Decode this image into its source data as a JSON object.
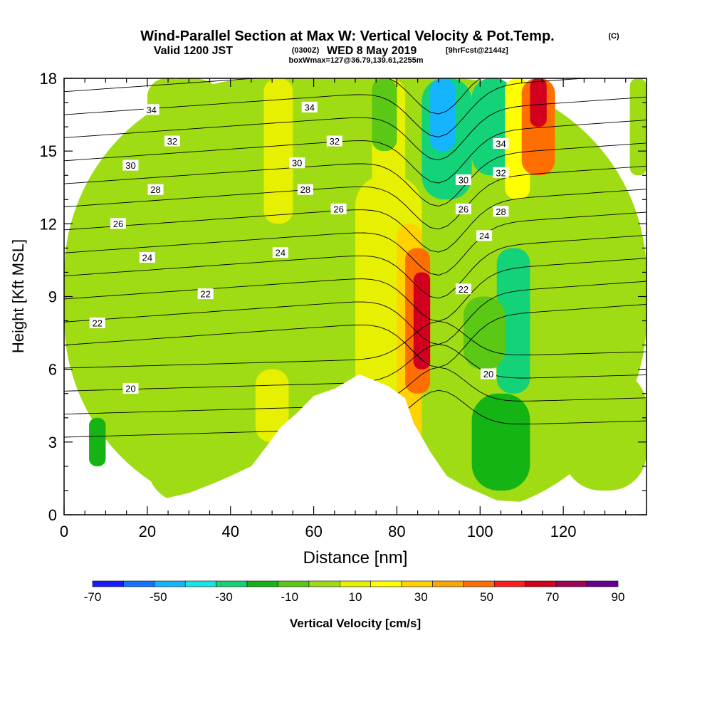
{
  "title": {
    "main": "Wind-Parallel Section at Max W: Vertical Velocity & Pot.Temp.",
    "copyright": "(C)",
    "valid_prefix": "Valid 1200 JST",
    "valid_utc": "(0300Z)",
    "valid_date": "WED 8 May 2019",
    "forecast": "[9hrFcst@2144z]",
    "box": "boxWmax=127@36.79,139.61,2255m"
  },
  "chart_data": {
    "type": "heatmap",
    "xlabel": "Distance [nm]",
    "ylabel": "Height [Kft MSL]",
    "xlim": [
      0,
      140
    ],
    "ylim": [
      0,
      18
    ],
    "x_ticks": [
      0,
      20,
      40,
      60,
      80,
      100,
      120
    ],
    "y_ticks": [
      0,
      3,
      6,
      9,
      12,
      15,
      18
    ],
    "colorbar": {
      "label": "Vertical Velocity [cm/s]",
      "levels": [
        -70,
        -60,
        -50,
        -40,
        -30,
        -20,
        -10,
        0,
        10,
        20,
        30,
        40,
        50,
        60,
        70,
        80,
        90
      ],
      "tick_labels": [
        "-70",
        "-50",
        "-30",
        "-10",
        "10",
        "30",
        "50",
        "70",
        "90"
      ],
      "colors": [
        "#1a1aff",
        "#1473ff",
        "#14b4ff",
        "#14e6e6",
        "#14d278",
        "#14b414",
        "#5ac814",
        "#a0dc14",
        "#e6f000",
        "#ffff00",
        "#ffd200",
        "#ffa500",
        "#ff6e00",
        "#ff1e1e",
        "#d2001e",
        "#a0005a",
        "#640096"
      ]
    },
    "velocity_cells": [
      {
        "x": [
          0,
          140
        ],
        "y": [
          0,
          18
        ],
        "w": 0
      },
      {
        "x": [
          20,
          40
        ],
        "y": [
          0.5,
          18
        ],
        "w": 5
      },
      {
        "x": [
          20,
          30
        ],
        "y": [
          8,
          18
        ],
        "w": 5
      },
      {
        "x": [
          40,
          60
        ],
        "y": [
          8,
          16
        ],
        "w": 5
      },
      {
        "x": [
          48,
          55
        ],
        "y": [
          12,
          18
        ],
        "w": 15
      },
      {
        "x": [
          6,
          10
        ],
        "y": [
          2,
          4
        ],
        "w": -15
      },
      {
        "x": [
          46,
          54
        ],
        "y": [
          3,
          6
        ],
        "w": 15
      },
      {
        "x": [
          70,
          86
        ],
        "y": [
          3,
          14
        ],
        "w": 15
      },
      {
        "x": [
          74,
          82
        ],
        "y": [
          13,
          18
        ],
        "w": 15
      },
      {
        "x": [
          80,
          86
        ],
        "y": [
          2,
          12
        ],
        "w": 35
      },
      {
        "x": [
          82,
          88
        ],
        "y": [
          5,
          11
        ],
        "w": 55
      },
      {
        "x": [
          84,
          88
        ],
        "y": [
          6,
          10
        ],
        "w": 75
      },
      {
        "x": [
          74,
          80
        ],
        "y": [
          15,
          18
        ],
        "w": -5
      },
      {
        "x": [
          86,
          98
        ],
        "y": [
          13,
          18
        ],
        "w": -25
      },
      {
        "x": [
          88,
          94
        ],
        "y": [
          15,
          18
        ],
        "w": -45
      },
      {
        "x": [
          98,
          108
        ],
        "y": [
          14,
          18
        ],
        "w": -25
      },
      {
        "x": [
          106,
          112
        ],
        "y": [
          13,
          18
        ],
        "w": 25
      },
      {
        "x": [
          110,
          118
        ],
        "y": [
          14,
          18
        ],
        "w": 55
      },
      {
        "x": [
          112,
          116
        ],
        "y": [
          16,
          18
        ],
        "w": 75
      },
      {
        "x": [
          104,
          112
        ],
        "y": [
          5,
          11
        ],
        "w": -25
      },
      {
        "x": [
          98,
          112
        ],
        "y": [
          1,
          5
        ],
        "w": -15
      },
      {
        "x": [
          120,
          140
        ],
        "y": [
          1,
          6
        ],
        "w": 5
      },
      {
        "x": [
          136,
          140
        ],
        "y": [
          14,
          18
        ],
        "w": 5
      },
      {
        "x": [
          96,
          106
        ],
        "y": [
          6,
          9
        ],
        "w": -5
      }
    ],
    "terrain": [
      {
        "x": 20,
        "top": 0.5
      },
      {
        "x": 30,
        "top": 0.9
      },
      {
        "x": 36,
        "top": 1.3
      },
      {
        "x": 40,
        "top": 1.6
      },
      {
        "x": 45,
        "top": 2.0
      },
      {
        "x": 49,
        "top": 2.9
      },
      {
        "x": 52,
        "top": 3.6
      },
      {
        "x": 56,
        "top": 4.2
      },
      {
        "x": 60,
        "top": 4.9
      },
      {
        "x": 65,
        "top": 5.2
      },
      {
        "x": 68,
        "top": 5.5
      },
      {
        "x": 71,
        "top": 5.8
      },
      {
        "x": 78,
        "top": 5.3
      },
      {
        "x": 82,
        "top": 4.8
      },
      {
        "x": 84,
        "top": 3.8
      },
      {
        "x": 88,
        "top": 2.6
      },
      {
        "x": 92,
        "top": 1.6
      },
      {
        "x": 96,
        "top": 1.2
      },
      {
        "x": 100,
        "top": 0.9
      },
      {
        "x": 104,
        "top": 0.6
      },
      {
        "x": 130,
        "top": 0.3
      },
      {
        "x": 140,
        "top": 0.3
      }
    ],
    "theta_labels": [
      {
        "text": "34",
        "x": 21,
        "y": 16.7
      },
      {
        "text": "34",
        "x": 59,
        "y": 16.8
      },
      {
        "text": "32",
        "x": 26,
        "y": 15.4
      },
      {
        "text": "32",
        "x": 65,
        "y": 15.4
      },
      {
        "text": "30",
        "x": 16,
        "y": 14.4
      },
      {
        "text": "30",
        "x": 56,
        "y": 14.5
      },
      {
        "text": "28",
        "x": 22,
        "y": 13.4
      },
      {
        "text": "28",
        "x": 58,
        "y": 13.4
      },
      {
        "text": "26",
        "x": 13,
        "y": 12.0
      },
      {
        "text": "26",
        "x": 66,
        "y": 12.6
      },
      {
        "text": "24",
        "x": 20,
        "y": 10.6
      },
      {
        "text": "24",
        "x": 52,
        "y": 10.8
      },
      {
        "text": "22",
        "x": 34,
        "y": 9.1
      },
      {
        "text": "22",
        "x": 8,
        "y": 7.9
      },
      {
        "text": "20",
        "x": 16,
        "y": 5.2
      },
      {
        "text": "34",
        "x": 105,
        "y": 15.3
      },
      {
        "text": "32",
        "x": 105,
        "y": 14.1
      },
      {
        "text": "30",
        "x": 96,
        "y": 13.8
      },
      {
        "text": "28",
        "x": 105,
        "y": 12.5
      },
      {
        "text": "26",
        "x": 96,
        "y": 12.6
      },
      {
        "text": "24",
        "x": 101,
        "y": 11.5
      },
      {
        "text": "22",
        "x": 96,
        "y": 9.3
      },
      {
        "text": "20",
        "x": 102,
        "y": 5.8
      }
    ]
  }
}
